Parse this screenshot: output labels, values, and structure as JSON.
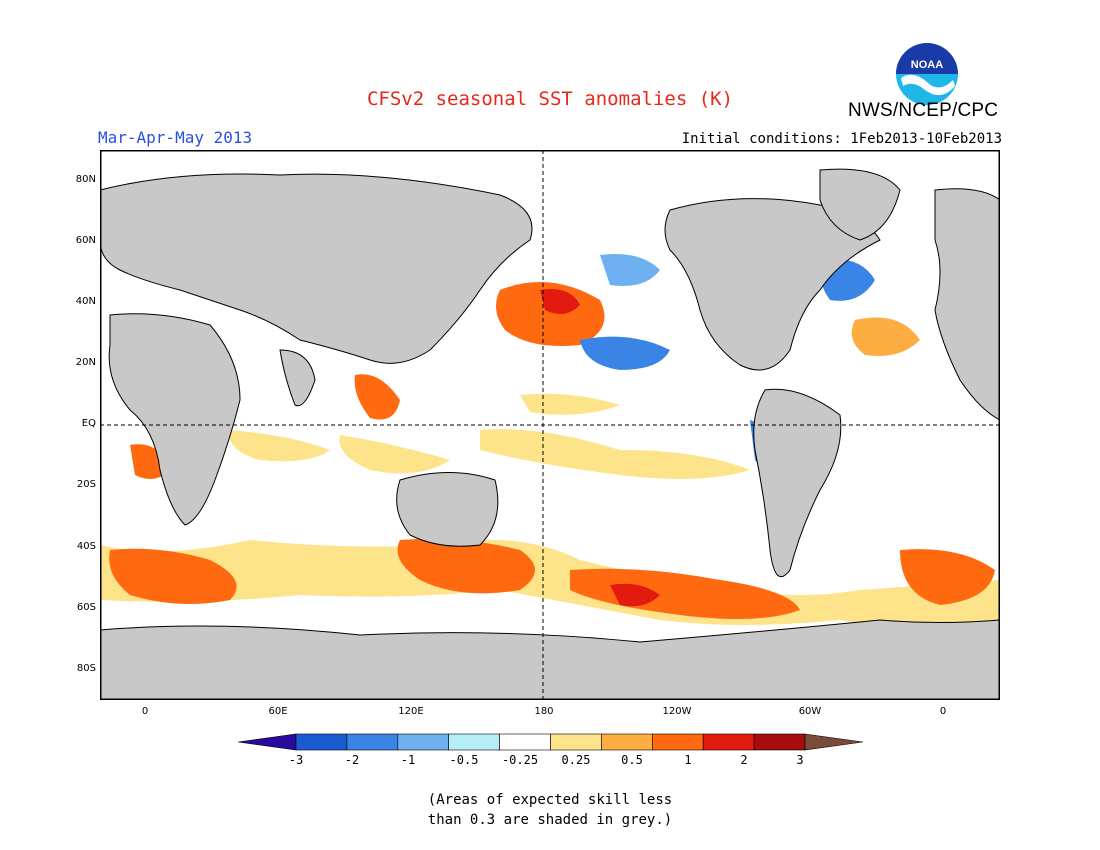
{
  "header": {
    "title": "CFSv2 seasonal SST anomalies (K)",
    "organization": "NWS/NCEP/CPC",
    "season": "Mar-Apr-May 2013",
    "initial_conditions": "Initial conditions: 1Feb2013-10Feb2013",
    "logo_text": "NOAA"
  },
  "map": {
    "lat_labels": [
      "80N",
      "60N",
      "40N",
      "20N",
      "EQ",
      "20S",
      "40S",
      "60S",
      "80S"
    ],
    "lon_labels": [
      "0",
      "60E",
      "120E",
      "180",
      "120W",
      "60W",
      "0"
    ],
    "land_color": "#c8c8c8",
    "ocean_color": "#ffffff"
  },
  "colorbar": {
    "labels": [
      "-3",
      "-2",
      "-1",
      "-0.5",
      "-0.25",
      "0.25",
      "0.5",
      "1",
      "2",
      "3"
    ],
    "colors": [
      "#2a0a9e",
      "#1a5bd0",
      "#3a84e6",
      "#6fb0f0",
      "#b5eef7",
      "#ffffff",
      "#fde38a",
      "#fdae42",
      "#ff6a10",
      "#e21a10",
      "#a80b0b",
      "#7a4a3a"
    ]
  },
  "note": {
    "line1": "(Areas of expected skill less",
    "line2": "than 0.3 are shaded in grey.)"
  },
  "colors": {
    "title": "#e8261c",
    "season": "#2a50e0"
  }
}
